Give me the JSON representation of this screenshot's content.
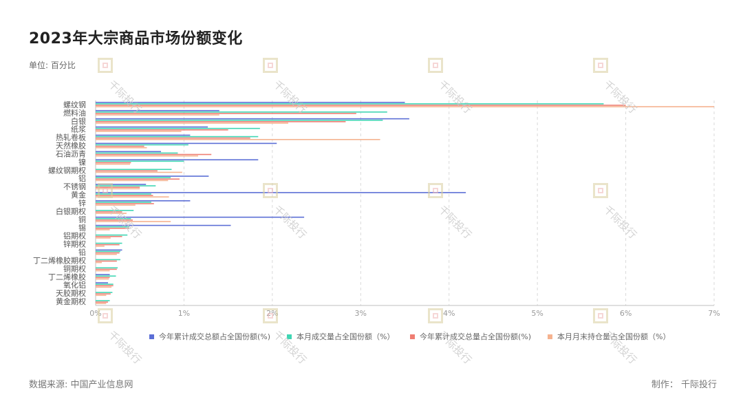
{
  "header": {
    "title": "2023年大宗商品市场份额变化",
    "unit": "单位: 百分比"
  },
  "footer": {
    "source": "数据来源: 中国产业信息网",
    "credit": "制作： 千际投行"
  },
  "watermark": {
    "text": "千际投行"
  },
  "chart_data": {
    "type": "bar",
    "orientation": "horizontal",
    "categories": [
      "螺纹钢",
      "燃料油",
      "白银",
      "纸浆",
      "热轧卷板",
      "天然橡胶",
      "石油沥青",
      "镍",
      "螺纹钢期权",
      "铝",
      "不锈钢",
      "黄金",
      "锌",
      "白银期权",
      "铜",
      "锡",
      "铝期权",
      "锌期权",
      "铅",
      "丁二烯橡胶期权",
      "铜期权",
      "丁二烯橡胶",
      "氧化铝",
      "天胶期权",
      "黄金期权"
    ],
    "xlim": [
      0,
      7
    ],
    "xticks": [
      0,
      1,
      2,
      3,
      4,
      5,
      6,
      7
    ],
    "tick_suffix": "%",
    "grid": "vertical-dashed",
    "legend_position": "bottom",
    "series": [
      {
        "name": "今年累计成交总额占全国份额(%)",
        "color": "#5b6ed6",
        "values": [
          3.5,
          1.4,
          3.55,
          1.27,
          1.07,
          2.05,
          0.74,
          1.84,
          0.0,
          1.28,
          0.57,
          4.19,
          1.07,
          0.0,
          2.36,
          1.53,
          0.0,
          0.0,
          0.3,
          0.0,
          0.0,
          0.16,
          0.14,
          0.0,
          0.0
        ]
      },
      {
        "name": "本月成交量占全国份额（%）",
        "color": "#3fd6b3",
        "values": [
          5.75,
          3.3,
          3.25,
          1.86,
          1.84,
          1.05,
          0.93,
          1.0,
          0.86,
          0.85,
          0.68,
          0.63,
          0.63,
          0.43,
          0.4,
          0.38,
          0.36,
          0.3,
          0.28,
          0.28,
          0.25,
          0.23,
          0.2,
          0.19,
          0.16
        ]
      },
      {
        "name": "今年累计成交总量占全国份额(%)",
        "color": "#ef7d72",
        "values": [
          6.0,
          2.95,
          2.83,
          1.5,
          1.75,
          0.55,
          1.31,
          0.4,
          0.7,
          0.95,
          0.5,
          0.65,
          0.66,
          0.3,
          0.42,
          0.38,
          0.3,
          0.27,
          0.27,
          0.24,
          0.24,
          0.16,
          0.2,
          0.17,
          0.14
        ]
      },
      {
        "name": "本月月末持仓量占全国份额（%）",
        "color": "#f5b28f",
        "values": [
          7.0,
          1.4,
          2.18,
          0.97,
          3.22,
          0.58,
          1.16,
          0.39,
          0.98,
          0.82,
          0.5,
          0.83,
          0.45,
          0.35,
          0.85,
          0.16,
          0.17,
          0.1,
          0.24,
          0.07,
          0.16,
          0.15,
          0.18,
          0.12,
          0.12
        ]
      }
    ]
  }
}
